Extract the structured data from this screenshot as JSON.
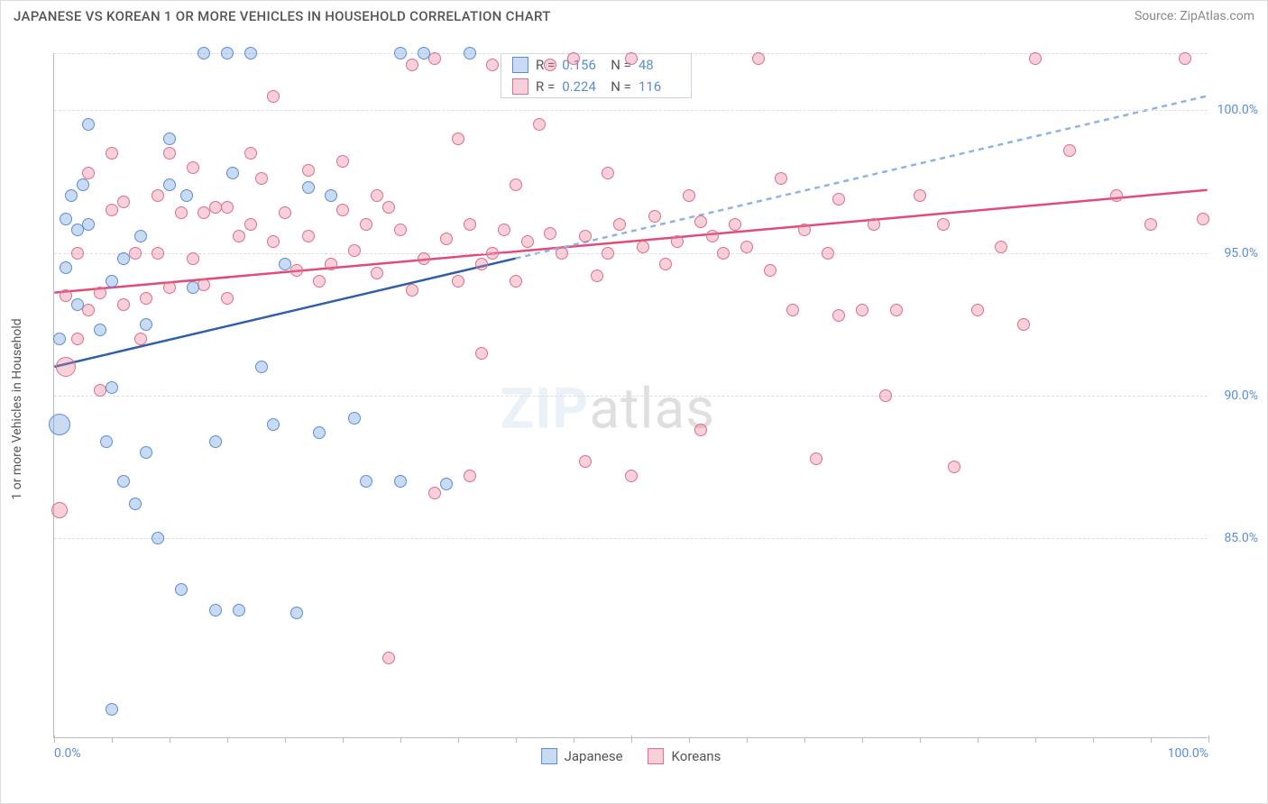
{
  "chart": {
    "type": "scatter",
    "title": "JAPANESE VS KOREAN 1 OR MORE VEHICLES IN HOUSEHOLD CORRELATION CHART",
    "source": "Source: ZipAtlas.com",
    "watermark_bold": "ZIP",
    "watermark_rest": "atlas",
    "yaxis_title": "1 or more Vehicles in Household",
    "xlim": [
      0,
      100
    ],
    "ylim": [
      78,
      102
    ],
    "yticks": [
      {
        "v": 85.0,
        "label": "85.0%"
      },
      {
        "v": 90.0,
        "label": "90.0%"
      },
      {
        "v": 95.0,
        "label": "95.0%"
      },
      {
        "v": 100.0,
        "label": "100.0%"
      }
    ],
    "xticks_major": [
      0,
      50,
      100
    ],
    "xticks_minor": [
      5,
      10,
      15,
      20,
      25,
      30,
      35,
      40,
      45,
      55,
      60,
      65,
      70,
      75,
      80,
      85,
      90,
      95
    ],
    "xlabels": [
      {
        "v": 0,
        "label": "0.0%"
      },
      {
        "v": 100,
        "label": "100.0%"
      }
    ],
    "grid_top_v": 102,
    "background_color": "#ffffff",
    "grid_color": "#dddddd",
    "label_color": "#5b8dd6"
  },
  "series": {
    "japanese": {
      "label": "Japanese",
      "fill": "rgba(99,151,222,0.35)",
      "stroke": "#5b8dd6",
      "line_color": "#2f5fa8",
      "line_dash_color": "#8fb3e2",
      "R": "0.156",
      "N": "48",
      "trend": {
        "x1": 0,
        "y1": 91.0,
        "x2": 40,
        "y2": 94.8,
        "x2_ext": 100,
        "y2_ext": 100.5
      },
      "points": [
        {
          "x": 0.5,
          "y": 89.0,
          "r": 12
        },
        {
          "x": 0.5,
          "y": 92.0,
          "r": 7
        },
        {
          "x": 1,
          "y": 94.5,
          "r": 7
        },
        {
          "x": 1,
          "y": 96.2,
          "r": 7
        },
        {
          "x": 1.5,
          "y": 97.0,
          "r": 7
        },
        {
          "x": 2,
          "y": 95.8,
          "r": 7
        },
        {
          "x": 2,
          "y": 93.2,
          "r": 7
        },
        {
          "x": 2.5,
          "y": 97.4,
          "r": 7
        },
        {
          "x": 3,
          "y": 96.0,
          "r": 7
        },
        {
          "x": 3,
          "y": 99.5,
          "r": 7
        },
        {
          "x": 4,
          "y": 92.3,
          "r": 7
        },
        {
          "x": 4.5,
          "y": 88.4,
          "r": 7
        },
        {
          "x": 5,
          "y": 90.3,
          "r": 7
        },
        {
          "x": 5,
          "y": 94.0,
          "r": 7
        },
        {
          "x": 6,
          "y": 87.0,
          "r": 7
        },
        {
          "x": 6,
          "y": 94.8,
          "r": 7
        },
        {
          "x": 7,
          "y": 86.2,
          "r": 7
        },
        {
          "x": 7.5,
          "y": 95.6,
          "r": 7
        },
        {
          "x": 8,
          "y": 88.0,
          "r": 7
        },
        {
          "x": 8,
          "y": 92.5,
          "r": 7
        },
        {
          "x": 9,
          "y": 85.0,
          "r": 7
        },
        {
          "x": 10,
          "y": 97.4,
          "r": 7
        },
        {
          "x": 10,
          "y": 99.0,
          "r": 7
        },
        {
          "x": 11,
          "y": 83.2,
          "r": 7
        },
        {
          "x": 11.5,
          "y": 97.0,
          "r": 7
        },
        {
          "x": 12,
          "y": 93.8,
          "r": 7
        },
        {
          "x": 13,
          "y": 102.0,
          "r": 7
        },
        {
          "x": 14,
          "y": 88.4,
          "r": 7
        },
        {
          "x": 14,
          "y": 82.5,
          "r": 7
        },
        {
          "x": 15,
          "y": 102.0,
          "r": 7
        },
        {
          "x": 15.5,
          "y": 97.8,
          "r": 7
        },
        {
          "x": 16,
          "y": 82.5,
          "r": 7
        },
        {
          "x": 17,
          "y": 102.0,
          "r": 7
        },
        {
          "x": 18,
          "y": 91.0,
          "r": 7
        },
        {
          "x": 19,
          "y": 89.0,
          "r": 7
        },
        {
          "x": 20,
          "y": 94.6,
          "r": 7
        },
        {
          "x": 21,
          "y": 82.4,
          "r": 7
        },
        {
          "x": 22,
          "y": 97.3,
          "r": 7
        },
        {
          "x": 23,
          "y": 88.7,
          "r": 7
        },
        {
          "x": 24,
          "y": 97.0,
          "r": 7
        },
        {
          "x": 26,
          "y": 89.2,
          "r": 7
        },
        {
          "x": 27,
          "y": 87.0,
          "r": 7
        },
        {
          "x": 30,
          "y": 102.0,
          "r": 7
        },
        {
          "x": 30,
          "y": 87.0,
          "r": 7
        },
        {
          "x": 32,
          "y": 102.0,
          "r": 7
        },
        {
          "x": 34,
          "y": 86.9,
          "r": 7
        },
        {
          "x": 36,
          "y": 102.0,
          "r": 7
        },
        {
          "x": 5,
          "y": 79.0,
          "r": 7
        }
      ]
    },
    "koreans": {
      "label": "Koreans",
      "fill": "rgba(235,120,150,0.35)",
      "stroke": "#dd6e8f",
      "line_color": "#e24b78",
      "R": "0.224",
      "N": "116",
      "trend": {
        "x1": 0,
        "y1": 93.6,
        "x2": 100,
        "y2": 97.2
      },
      "points": [
        {
          "x": 0.5,
          "y": 86.0,
          "r": 9
        },
        {
          "x": 1,
          "y": 91.0,
          "r": 11
        },
        {
          "x": 1,
          "y": 93.5,
          "r": 7
        },
        {
          "x": 2,
          "y": 92.0,
          "r": 7
        },
        {
          "x": 2,
          "y": 95.0,
          "r": 7
        },
        {
          "x": 3,
          "y": 93.0,
          "r": 7
        },
        {
          "x": 3,
          "y": 97.8,
          "r": 7
        },
        {
          "x": 4,
          "y": 93.6,
          "r": 7
        },
        {
          "x": 4,
          "y": 90.2,
          "r": 7
        },
        {
          "x": 5,
          "y": 96.5,
          "r": 7
        },
        {
          "x": 5,
          "y": 98.5,
          "r": 7
        },
        {
          "x": 6,
          "y": 93.2,
          "r": 7
        },
        {
          "x": 6,
          "y": 96.8,
          "r": 7
        },
        {
          "x": 7,
          "y": 95.0,
          "r": 7
        },
        {
          "x": 7.5,
          "y": 92.0,
          "r": 7
        },
        {
          "x": 8,
          "y": 93.4,
          "r": 7
        },
        {
          "x": 9,
          "y": 95.0,
          "r": 7
        },
        {
          "x": 9,
          "y": 97.0,
          "r": 7
        },
        {
          "x": 10,
          "y": 93.8,
          "r": 7
        },
        {
          "x": 10,
          "y": 98.5,
          "r": 7
        },
        {
          "x": 11,
          "y": 96.4,
          "r": 7
        },
        {
          "x": 12,
          "y": 94.8,
          "r": 7
        },
        {
          "x": 12,
          "y": 98.0,
          "r": 7
        },
        {
          "x": 13,
          "y": 96.4,
          "r": 7
        },
        {
          "x": 13,
          "y": 93.9,
          "r": 7
        },
        {
          "x": 14,
          "y": 96.6,
          "r": 7
        },
        {
          "x": 15,
          "y": 96.6,
          "r": 7
        },
        {
          "x": 15,
          "y": 93.4,
          "r": 7
        },
        {
          "x": 16,
          "y": 95.6,
          "r": 7
        },
        {
          "x": 17,
          "y": 96.0,
          "r": 7
        },
        {
          "x": 17,
          "y": 98.5,
          "r": 7
        },
        {
          "x": 18,
          "y": 97.6,
          "r": 7
        },
        {
          "x": 19,
          "y": 95.4,
          "r": 7
        },
        {
          "x": 19,
          "y": 100.5,
          "r": 7
        },
        {
          "x": 20,
          "y": 96.4,
          "r": 7
        },
        {
          "x": 21,
          "y": 94.4,
          "r": 7
        },
        {
          "x": 22,
          "y": 95.6,
          "r": 7
        },
        {
          "x": 22,
          "y": 97.9,
          "r": 7
        },
        {
          "x": 23,
          "y": 94.0,
          "r": 7
        },
        {
          "x": 24,
          "y": 94.6,
          "r": 7
        },
        {
          "x": 25,
          "y": 96.5,
          "r": 7
        },
        {
          "x": 25,
          "y": 98.2,
          "r": 7
        },
        {
          "x": 26,
          "y": 95.1,
          "r": 7
        },
        {
          "x": 27,
          "y": 96.0,
          "r": 7
        },
        {
          "x": 28,
          "y": 94.3,
          "r": 7
        },
        {
          "x": 28,
          "y": 97.0,
          "r": 7
        },
        {
          "x": 29,
          "y": 96.6,
          "r": 7
        },
        {
          "x": 29,
          "y": 80.8,
          "r": 7
        },
        {
          "x": 30,
          "y": 95.8,
          "r": 7
        },
        {
          "x": 31,
          "y": 101.6,
          "r": 7
        },
        {
          "x": 31,
          "y": 93.7,
          "r": 7
        },
        {
          "x": 32,
          "y": 94.8,
          "r": 7
        },
        {
          "x": 33,
          "y": 101.8,
          "r": 7
        },
        {
          "x": 33,
          "y": 86.6,
          "r": 7
        },
        {
          "x": 34,
          "y": 95.5,
          "r": 7
        },
        {
          "x": 35,
          "y": 94.0,
          "r": 7
        },
        {
          "x": 35,
          "y": 99.0,
          "r": 7
        },
        {
          "x": 36,
          "y": 96.0,
          "r": 7
        },
        {
          "x": 36,
          "y": 87.2,
          "r": 7
        },
        {
          "x": 37,
          "y": 94.6,
          "r": 7
        },
        {
          "x": 37,
          "y": 91.5,
          "r": 7
        },
        {
          "x": 38,
          "y": 95.0,
          "r": 7
        },
        {
          "x": 38,
          "y": 101.6,
          "r": 7
        },
        {
          "x": 39,
          "y": 95.8,
          "r": 7
        },
        {
          "x": 40,
          "y": 94.0,
          "r": 7
        },
        {
          "x": 40,
          "y": 97.4,
          "r": 7
        },
        {
          "x": 41,
          "y": 95.4,
          "r": 7
        },
        {
          "x": 42,
          "y": 99.5,
          "r": 7
        },
        {
          "x": 43,
          "y": 95.7,
          "r": 7
        },
        {
          "x": 43,
          "y": 101.6,
          "r": 7
        },
        {
          "x": 44,
          "y": 95.0,
          "r": 7
        },
        {
          "x": 45,
          "y": 101.8,
          "r": 7
        },
        {
          "x": 46,
          "y": 95.6,
          "r": 7
        },
        {
          "x": 46,
          "y": 87.7,
          "r": 7
        },
        {
          "x": 47,
          "y": 94.2,
          "r": 7
        },
        {
          "x": 48,
          "y": 95.0,
          "r": 7
        },
        {
          "x": 48,
          "y": 97.8,
          "r": 7
        },
        {
          "x": 49,
          "y": 96.0,
          "r": 7
        },
        {
          "x": 50,
          "y": 101.8,
          "r": 7
        },
        {
          "x": 50,
          "y": 87.2,
          "r": 7
        },
        {
          "x": 51,
          "y": 95.2,
          "r": 7
        },
        {
          "x": 52,
          "y": 96.3,
          "r": 7
        },
        {
          "x": 53,
          "y": 94.6,
          "r": 7
        },
        {
          "x": 54,
          "y": 95.4,
          "r": 7
        },
        {
          "x": 55,
          "y": 97.0,
          "r": 7
        },
        {
          "x": 56,
          "y": 96.1,
          "r": 7
        },
        {
          "x": 56,
          "y": 88.8,
          "r": 7
        },
        {
          "x": 57,
          "y": 95.6,
          "r": 7
        },
        {
          "x": 58,
          "y": 95.0,
          "r": 7
        },
        {
          "x": 59,
          "y": 96.0,
          "r": 7
        },
        {
          "x": 60,
          "y": 95.2,
          "r": 7
        },
        {
          "x": 61,
          "y": 101.8,
          "r": 7
        },
        {
          "x": 62,
          "y": 94.4,
          "r": 7
        },
        {
          "x": 63,
          "y": 97.6,
          "r": 7
        },
        {
          "x": 64,
          "y": 93.0,
          "r": 7
        },
        {
          "x": 65,
          "y": 95.8,
          "r": 7
        },
        {
          "x": 66,
          "y": 87.8,
          "r": 7
        },
        {
          "x": 67,
          "y": 95.0,
          "r": 7
        },
        {
          "x": 68,
          "y": 92.8,
          "r": 7
        },
        {
          "x": 68,
          "y": 96.9,
          "r": 7
        },
        {
          "x": 70,
          "y": 93.0,
          "r": 7
        },
        {
          "x": 71,
          "y": 96.0,
          "r": 7
        },
        {
          "x": 72,
          "y": 90.0,
          "r": 7
        },
        {
          "x": 73,
          "y": 93.0,
          "r": 7
        },
        {
          "x": 75,
          "y": 97.0,
          "r": 7
        },
        {
          "x": 77,
          "y": 96.0,
          "r": 7
        },
        {
          "x": 78,
          "y": 87.5,
          "r": 7
        },
        {
          "x": 80,
          "y": 93.0,
          "r": 7
        },
        {
          "x": 82,
          "y": 95.2,
          "r": 7
        },
        {
          "x": 84,
          "y": 92.5,
          "r": 7
        },
        {
          "x": 85,
          "y": 101.8,
          "r": 7
        },
        {
          "x": 88,
          "y": 98.6,
          "r": 7
        },
        {
          "x": 92,
          "y": 97.0,
          "r": 7
        },
        {
          "x": 95,
          "y": 96.0,
          "r": 7
        },
        {
          "x": 98,
          "y": 101.8,
          "r": 7
        },
        {
          "x": 99.5,
          "y": 96.2,
          "r": 7
        }
      ]
    }
  }
}
